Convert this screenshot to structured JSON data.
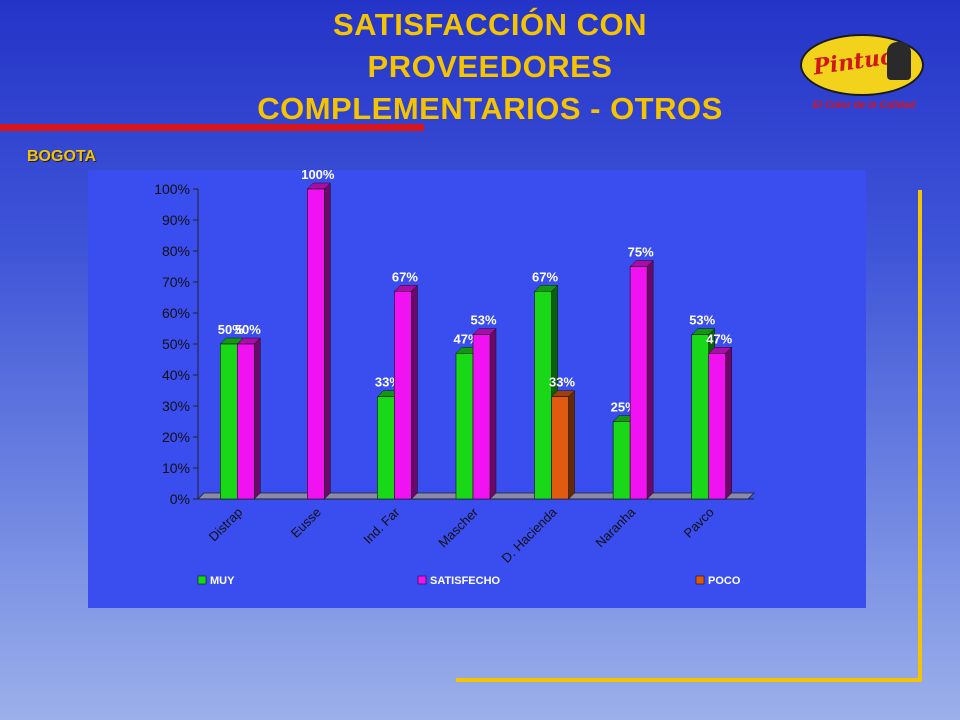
{
  "title_lines": [
    "SATISFACCIÓN CON",
    "PROVEEDORES",
    "COMPLEMENTARIOS - OTROS"
  ],
  "subtitle": "BOGOTA",
  "logo": {
    "name": "Pintuco",
    "tagline": "El Color de la Calidad"
  },
  "colors": {
    "muy": "#18d818",
    "satisfecho": "#f012f0",
    "poco": "#e05a10",
    "title": "#f5c400",
    "accent_bar": "#d8141c"
  },
  "chart_data": {
    "type": "bar",
    "categories": [
      "Distrap",
      "Eusse",
      "Ind. Far",
      "Mascher",
      "D. Hacienda",
      "Naranha",
      "Pavco"
    ],
    "series": [
      {
        "name": "MUY",
        "values": [
          50,
          null,
          33,
          47,
          67,
          25,
          53
        ]
      },
      {
        "name": "SATISFECHO",
        "values": [
          50,
          100,
          67,
          53,
          null,
          75,
          47
        ]
      },
      {
        "name": "POCO",
        "values": [
          null,
          null,
          null,
          null,
          33,
          null,
          null
        ]
      }
    ],
    "ylim": [
      0,
      100
    ],
    "ytick_labels": [
      "0%",
      "10%",
      "20%",
      "30%",
      "40%",
      "50%",
      "60%",
      "70%",
      "80%",
      "90%",
      "100%"
    ],
    "value_suffix": "%",
    "legend_position": "bottom",
    "grid": false
  }
}
